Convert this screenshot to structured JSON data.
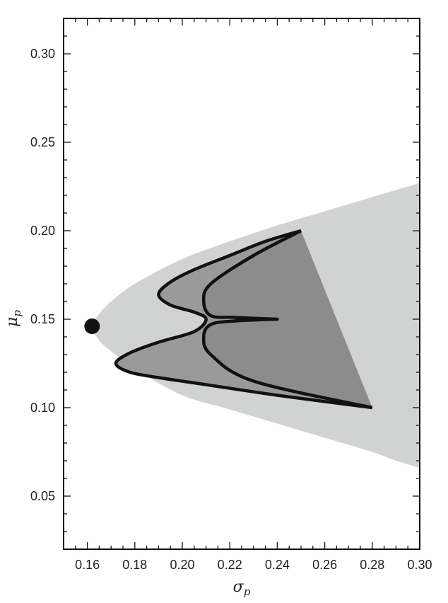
{
  "chart_data": {
    "type": "area",
    "title": "",
    "xlabel": {
      "symbol": "σ",
      "subscript": "p"
    },
    "ylabel": {
      "symbol": "μ",
      "subscript": "p"
    },
    "xlim": [
      0.15,
      0.3
    ],
    "ylim": [
      0.02,
      0.32
    ],
    "xticks": [
      0.16,
      0.18,
      0.2,
      0.22,
      0.24,
      0.26,
      0.28,
      0.3
    ],
    "xtick_labels": [
      "0.16",
      "0.18",
      "0.20",
      "0.22",
      "0.24",
      "0.26",
      "0.28",
      "0.30"
    ],
    "yticks": [
      0.05,
      0.1,
      0.15,
      0.2,
      0.25,
      0.3
    ],
    "ytick_labels": [
      "0.05",
      "0.10",
      "0.15",
      "0.20",
      "0.25",
      "0.30"
    ],
    "grid": false,
    "colors": {
      "outer_region": "#d1d2d2",
      "inner_region": "#8c8c8c",
      "star_fill": "#9a9a9a",
      "outline": "#111111",
      "point": "#111111"
    },
    "outer_frontier": {
      "x": [
        0.3,
        0.29,
        0.28,
        0.26,
        0.24,
        0.22,
        0.2,
        0.18,
        0.17,
        0.165,
        0.162,
        0.165,
        0.17,
        0.18,
        0.2,
        0.22,
        0.24,
        0.26,
        0.28,
        0.29,
        0.3
      ],
      "y": [
        0.227,
        0.223,
        0.219,
        0.211,
        0.203,
        0.194,
        0.184,
        0.17,
        0.16,
        0.153,
        0.146,
        0.138,
        0.132,
        0.122,
        0.107,
        0.099,
        0.091,
        0.083,
        0.075,
        0.07,
        0.066
      ]
    },
    "inner_frontier": {
      "x": [
        0.25,
        0.235,
        0.22,
        0.205,
        0.195,
        0.19,
        0.195,
        0.205,
        0.21,
        0.205,
        0.19,
        0.178,
        0.172,
        0.178,
        0.19,
        0.21,
        0.24,
        0.28
      ],
      "y": [
        0.2,
        0.194,
        0.186,
        0.178,
        0.171,
        0.164,
        0.158,
        0.154,
        0.15,
        0.143,
        0.137,
        0.131,
        0.125,
        0.12,
        0.117,
        0.113,
        0.107,
        0.1
      ]
    },
    "star_boundary": {
      "x": [
        0.25,
        0.23,
        0.212,
        0.209,
        0.212,
        0.222,
        0.24,
        0.222,
        0.212,
        0.209,
        0.212,
        0.23,
        0.28
      ],
      "y": [
        0.2,
        0.186,
        0.17,
        0.16,
        0.152,
        0.151,
        0.15,
        0.149,
        0.147,
        0.14,
        0.13,
        0.115,
        0.1
      ]
    },
    "min_variance_point": {
      "x": 0.162,
      "y": 0.146
    }
  }
}
